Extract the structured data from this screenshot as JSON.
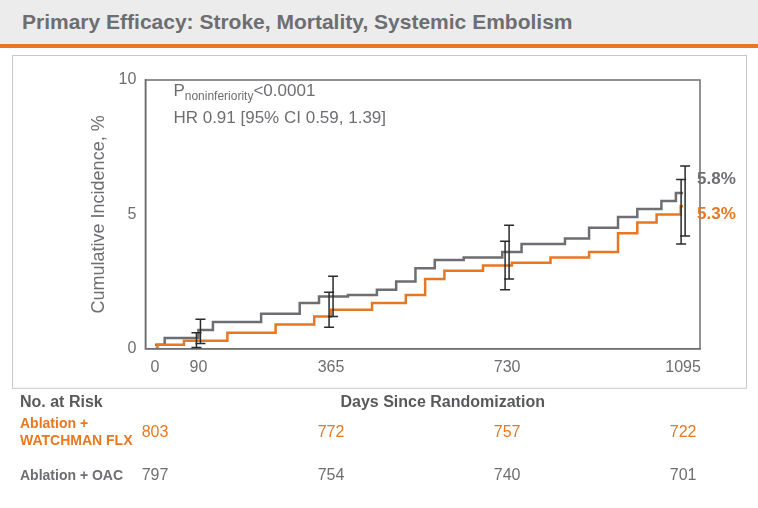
{
  "chart_data": {
    "type": "line",
    "line_style": "step",
    "title": "Primary Efficacy: Stroke, Mortality, Systemic Embolism",
    "ylabel": "Cumulative Incidence, %",
    "xlabel": "Days Since Randomization",
    "annotations": [
      {
        "text": "P",
        "subscript": "noninferiority",
        "suffix": "<0.0001"
      },
      {
        "text": "HR 0.91 [95% CI 0.59, 1.39]"
      }
    ],
    "xlim": [
      -20,
      1130
    ],
    "xticks": [
      0,
      90,
      365,
      730,
      1095
    ],
    "ylim": [
      0,
      10
    ],
    "yticks": [
      0,
      5,
      10
    ],
    "grid": false,
    "series": [
      {
        "name": "Ablation + WATCHMAN FLX",
        "color": "#e87722",
        "x": [
          0,
          5,
          60,
          150,
          250,
          330,
          365,
          450,
          520,
          560,
          600,
          680,
          740,
          820,
          900,
          960,
          1000,
          1040,
          1090,
          1095
        ],
        "values": [
          0,
          0.15,
          0.3,
          0.6,
          0.9,
          1.2,
          1.45,
          1.7,
          2.0,
          2.6,
          2.9,
          3.1,
          3.2,
          3.4,
          3.6,
          4.3,
          4.7,
          5.0,
          5.3,
          5.3
        ],
        "end_label": "5.3%",
        "error_bars": {
          "x": [
            90,
            365,
            730,
            1095
          ],
          "low": [
            0.05,
            0.8,
            2.2,
            3.9
          ],
          "high": [
            0.6,
            2.1,
            4.0,
            6.3
          ]
        },
        "at_risk": [
          803,
          772,
          757,
          722
        ]
      },
      {
        "name": "Ablation + OAC",
        "color": "#6d6e71",
        "x": [
          0,
          20,
          90,
          120,
          220,
          300,
          340,
          400,
          460,
          500,
          540,
          580,
          640,
          720,
          760,
          850,
          900,
          960,
          1000,
          1050,
          1080,
          1095
        ],
        "values": [
          0.15,
          0.4,
          0.7,
          1.0,
          1.3,
          1.7,
          1.95,
          2.0,
          2.2,
          2.5,
          3.0,
          3.3,
          3.4,
          3.6,
          3.9,
          4.1,
          4.5,
          4.9,
          5.2,
          5.5,
          5.8,
          5.8
        ],
        "end_label": "5.8%",
        "error_bars": {
          "x": [
            90,
            365,
            730,
            1095
          ],
          "low": [
            0.2,
            1.2,
            2.6,
            4.2
          ],
          "high": [
            1.1,
            2.7,
            4.6,
            6.8
          ]
        },
        "at_risk": [
          797,
          754,
          740,
          701
        ]
      }
    ],
    "at_risk": {
      "title": "No. at Risk",
      "x": [
        0,
        365,
        730,
        1095
      ]
    }
  }
}
